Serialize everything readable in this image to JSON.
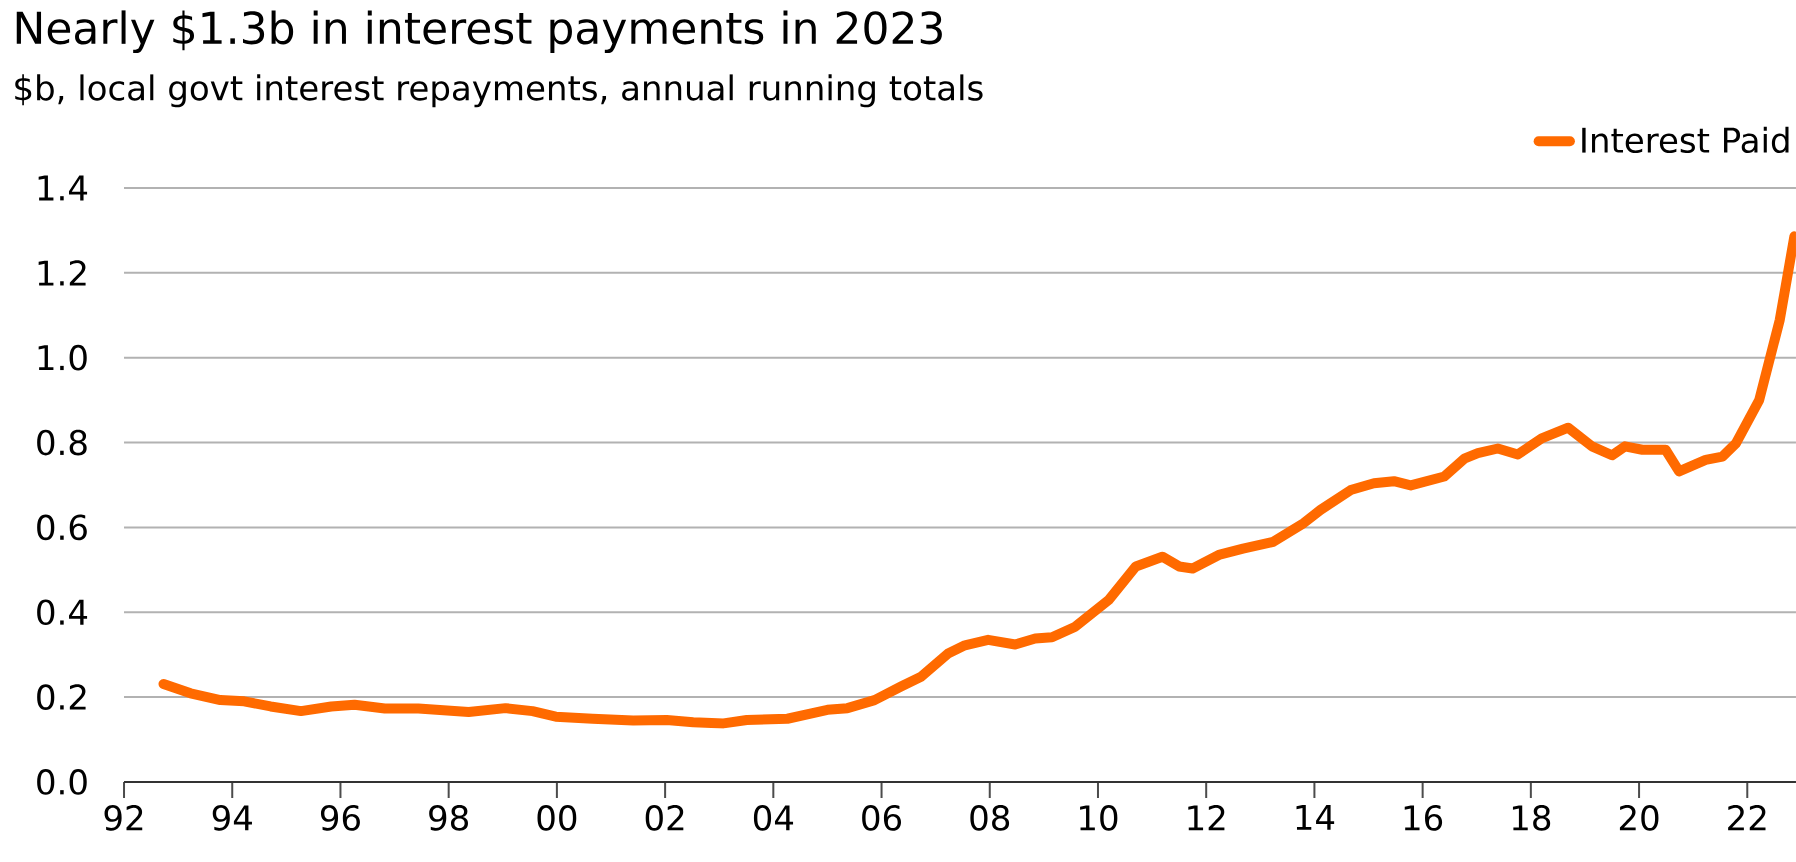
{
  "chart_data": {
    "type": "line",
    "title": "Nearly $1.3b in interest payments in 2023",
    "subtitle": "$b, local govt interest repayments, annual running totals",
    "x": [
      1992.73,
      1993.23,
      1993.78,
      1994.22,
      1994.71,
      1995.27,
      1995.83,
      1996.26,
      1996.82,
      1997.44,
      1998.37,
      1999.05,
      1999.55,
      1999.98,
      2000.66,
      2001.41,
      2002.03,
      2002.52,
      2003.08,
      2003.51,
      2004.26,
      2005.0,
      2005.37,
      2005.87,
      2006.36,
      2006.73,
      2007.23,
      2007.54,
      2007.97,
      2008.47,
      2008.84,
      2009.15,
      2009.58,
      2010.2,
      2010.7,
      2011.19,
      2011.5,
      2011.75,
      2012.25,
      2012.68,
      2013.24,
      2013.8,
      2014.11,
      2014.67,
      2015.1,
      2015.47,
      2015.78,
      2016.4,
      2016.77,
      2017.02,
      2017.39,
      2017.76,
      2018.2,
      2018.69,
      2019.13,
      2019.5,
      2019.74,
      2020.06,
      2020.49,
      2020.74,
      2021.23,
      2021.54,
      2021.79,
      2022.22,
      2022.6,
      2022.87
    ],
    "series": [
      {
        "name": "Interest Paid",
        "color": "#ff6a00",
        "values": [
          0.231,
          0.209,
          0.193,
          0.19,
          0.178,
          0.167,
          0.178,
          0.182,
          0.173,
          0.173,
          0.165,
          0.174,
          0.167,
          0.154,
          0.149,
          0.145,
          0.146,
          0.141,
          0.138,
          0.146,
          0.149,
          0.17,
          0.174,
          0.193,
          0.225,
          0.248,
          0.303,
          0.322,
          0.335,
          0.324,
          0.338,
          0.341,
          0.366,
          0.429,
          0.508,
          0.531,
          0.508,
          0.503,
          0.536,
          0.55,
          0.566,
          0.61,
          0.641,
          0.688,
          0.704,
          0.709,
          0.699,
          0.72,
          0.762,
          0.775,
          0.786,
          0.772,
          0.81,
          0.835,
          0.791,
          0.77,
          0.791,
          0.783,
          0.783,
          0.732,
          0.759,
          0.767,
          0.798,
          0.9,
          1.089,
          1.286
        ]
      }
    ],
    "xlim": [
      1992,
      2022.9
    ],
    "ylim": [
      0,
      1.4
    ],
    "xticks": [
      {
        "value": 1992,
        "label": "92"
      },
      {
        "value": 1994,
        "label": "94"
      },
      {
        "value": 1996,
        "label": "96"
      },
      {
        "value": 1998,
        "label": "98"
      },
      {
        "value": 2000,
        "label": "00"
      },
      {
        "value": 2002,
        "label": "02"
      },
      {
        "value": 2004,
        "label": "04"
      },
      {
        "value": 2006,
        "label": "06"
      },
      {
        "value": 2008,
        "label": "08"
      },
      {
        "value": 2010,
        "label": "10"
      },
      {
        "value": 2012,
        "label": "12"
      },
      {
        "value": 2014,
        "label": "14"
      },
      {
        "value": 2016,
        "label": "16"
      },
      {
        "value": 2018,
        "label": "18"
      },
      {
        "value": 2020,
        "label": "20"
      },
      {
        "value": 2022,
        "label": "22"
      }
    ],
    "yticks": [
      {
        "value": 0,
        "label": "0.0"
      },
      {
        "value": 0.2,
        "label": "0.2"
      },
      {
        "value": 0.4,
        "label": "0.4"
      },
      {
        "value": 0.6,
        "label": "0.6"
      },
      {
        "value": 0.8,
        "label": "0.8"
      },
      {
        "value": 1.0,
        "label": "1.0"
      },
      {
        "value": 1.2,
        "label": "1.2"
      },
      {
        "value": 1.4,
        "label": "1.4"
      }
    ],
    "grid": "y",
    "legend": "top right",
    "marker": "none",
    "line_style": "solid"
  }
}
